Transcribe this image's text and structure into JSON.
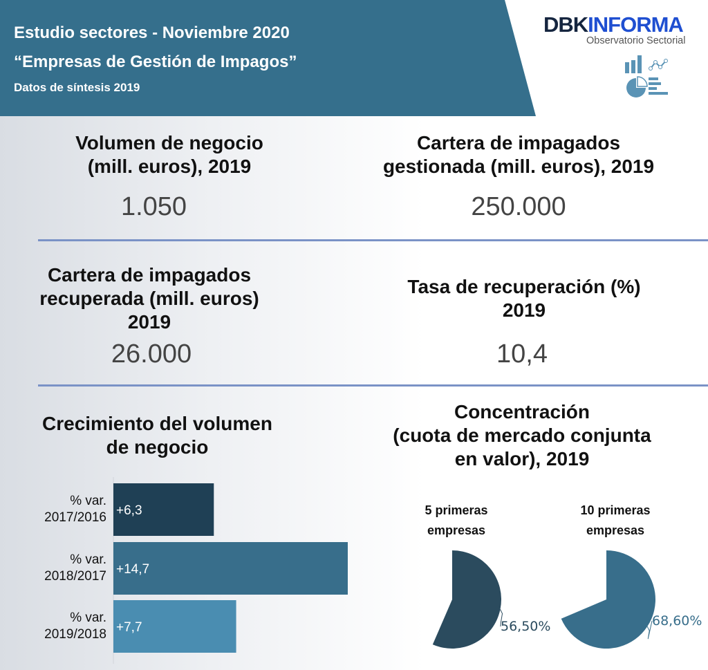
{
  "header": {
    "title": "Estudio sectores - Noviembre 2020",
    "subtitle": "“Empresas de Gestión de Impagos”",
    "note": "Datos de síntesis 2019",
    "logo": {
      "brand_dark": "DBK",
      "brand_blue": "INFORMA",
      "tagline": "Observatorio Sectorial",
      "icon": "analytics-charts-icon"
    }
  },
  "kpis": [
    {
      "title_l1": "Volumen de negocio",
      "title_l2": "(mill. euros), 2019",
      "value": "1.050"
    },
    {
      "title_l1": "Cartera de impagados",
      "title_l2": "gestionada (mill. euros), 2019",
      "value": "250.000"
    },
    {
      "title_l1": "Cartera de impagados",
      "title_l2": "recuperada (mill. euros)",
      "title_l3": "2019",
      "value": "26.000"
    },
    {
      "title_l1": "Tasa de recuperación (%)",
      "title_l2": "2019",
      "value": "10,4"
    }
  ],
  "colors": {
    "header": "#356f8c",
    "divider": "#7a92c6",
    "bar1": "#1f4055",
    "bar2": "#386e8b",
    "bar3": "#4a8db1",
    "pie1": "#2b4b5e",
    "pie2": "#386e8b"
  },
  "chart_data": [
    {
      "type": "bar",
      "orientation": "horizontal",
      "title_l1": "Crecimiento del volumen",
      "title_l2": "de negocio",
      "categories": [
        [
          "% var.",
          "2017/2016"
        ],
        [
          "% var.",
          "2018/2017"
        ],
        [
          "% var.",
          "2019/2018"
        ]
      ],
      "values": [
        6.3,
        14.7,
        7.7
      ],
      "labels": [
        "+6,3",
        "+14,7",
        "+7,7"
      ]
    },
    {
      "type": "pie",
      "title_l1": "Concentración",
      "title_l2": "(cuota de mercado conjunta",
      "title_l3": "en valor), 2019",
      "pies": [
        {
          "title_l1": "5 primeras",
          "title_l2": "empresas",
          "value": 56.5,
          "label": "56,50%"
        },
        {
          "title_l1": "10 primeras",
          "title_l2": "empresas",
          "value": 68.6,
          "label": "68,60%"
        }
      ]
    }
  ]
}
